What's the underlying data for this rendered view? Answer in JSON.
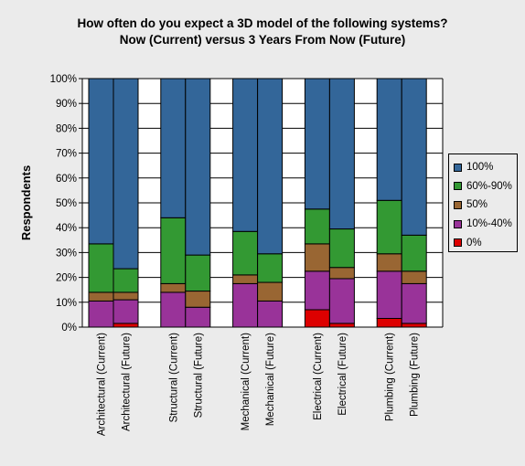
{
  "chart_data": {
    "type": "bar",
    "stacked": true,
    "title": [
      "How often do you expect a 3D model of the following systems?",
      "Now (Current) versus 3 Years From Now (Future)"
    ],
    "ylabel": "Respondents",
    "ylim": [
      0,
      100
    ],
    "yticks": [
      "0%",
      "10%",
      "20%",
      "30%",
      "40%",
      "50%",
      "60%",
      "70%",
      "80%",
      "90%",
      "100%"
    ],
    "categories": [
      "Architectural (Current)",
      "Architectural (Future)",
      "Structural (Current)",
      "Structural (Future)",
      "Mechanical (Current)",
      "Mechanical (Future)",
      "Electrical (Current)",
      "Electrical (Future)",
      "Plumbing (Current)",
      "Plumbing (Future)"
    ],
    "series": [
      {
        "name": "0%",
        "color": "#dd0000",
        "values": [
          0,
          1.5,
          0,
          0,
          0,
          0,
          7,
          1.5,
          3.5,
          1.5
        ]
      },
      {
        "name": "10%-40%",
        "color": "#993399",
        "values": [
          10.5,
          9.5,
          14,
          8,
          17.5,
          10.5,
          15.5,
          18,
          19,
          16
        ]
      },
      {
        "name": "50%",
        "color": "#996633",
        "values": [
          3.5,
          3,
          3.5,
          6.5,
          3.5,
          7.5,
          11,
          4.5,
          7,
          5
        ]
      },
      {
        "name": "60%-90%",
        "color": "#339933",
        "values": [
          19.5,
          9.5,
          26.5,
          14.5,
          17.5,
          11.5,
          14,
          15.5,
          21.5,
          14.5
        ]
      },
      {
        "name": "100%",
        "color": "#336699",
        "values": [
          66.5,
          76.5,
          56,
          71,
          61.5,
          70.5,
          52.5,
          60.5,
          49,
          63
        ]
      }
    ],
    "legend": {
      "position": "right",
      "order": [
        "100%",
        "60%-90%",
        "50%",
        "10%-40%",
        "0%"
      ]
    }
  }
}
